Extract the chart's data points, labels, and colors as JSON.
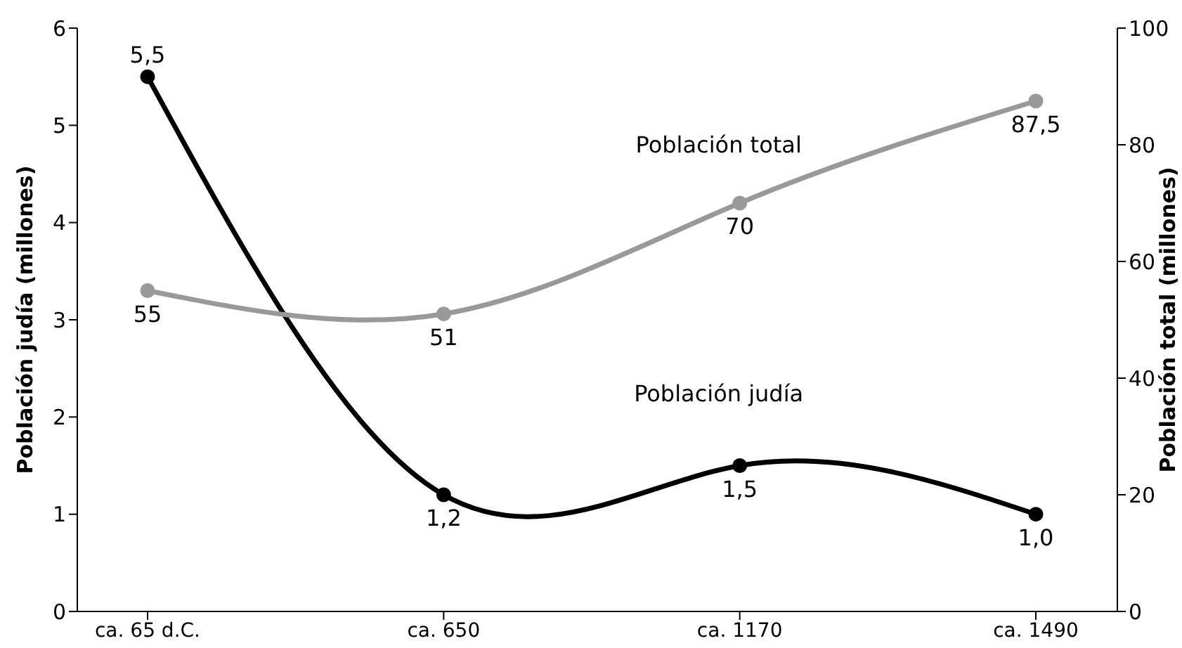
{
  "chart_data": {
    "type": "line",
    "ylabel": "Población judía (millones)",
    "y2label": "Población total (millones)",
    "categories": [
      "ca. 65 d.C.",
      "ca. 650",
      "ca. 1170",
      "ca. 1490"
    ],
    "series": [
      {
        "name": "Población judía",
        "color": "#000000",
        "values": [
          5.5,
          1.2,
          1.5,
          1.0
        ],
        "value_labels": [
          "5,5",
          "1,2",
          "1,5",
          "1,0"
        ]
      },
      {
        "name": "Población total",
        "color": "#999999",
        "values": [
          55,
          51,
          70,
          87.5
        ],
        "value_labels": [
          "55",
          "51",
          "70",
          "87,5"
        ],
        "axis": "y2"
      }
    ],
    "ylim": [
      0,
      6
    ],
    "yticks": [
      0,
      1,
      2,
      3,
      4,
      5,
      6
    ],
    "y2lim": [
      0,
      100
    ],
    "y2ticks": [
      0,
      20,
      40,
      60,
      80,
      100
    ],
    "grid": false,
    "legend": false,
    "marker": "circle",
    "line_style": "solid"
  }
}
